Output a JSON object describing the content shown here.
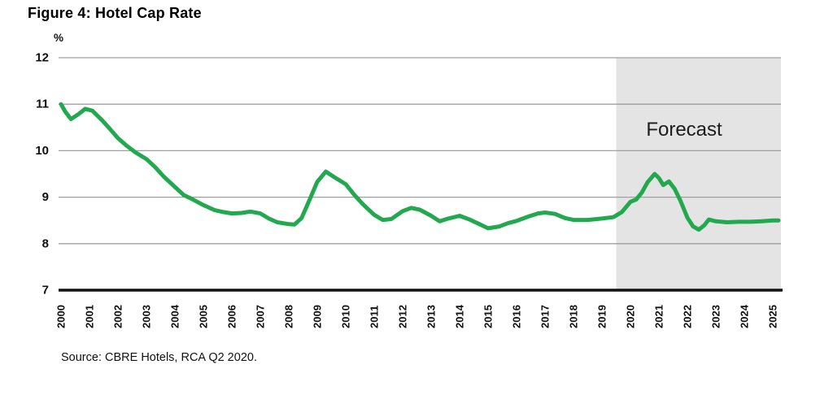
{
  "header": {
    "title": "Figure 4: Hotel Cap Rate"
  },
  "footer": {
    "source": "Source: CBRE Hotels, RCA Q2 2020."
  },
  "colors": {
    "line_green": "#22a84f",
    "forecast_band": "#e4e4e4",
    "gridline": "#a0a0a0",
    "axis": "#111111",
    "text": "#111111"
  },
  "chart_data": {
    "type": "line",
    "title": "Figure 4: Hotel Cap Rate",
    "xlabel": "",
    "ylabel": "%",
    "unit_label": "%",
    "ylim": [
      7,
      12
    ],
    "xlim": [
      1999.915,
      2025.285
    ],
    "grid": "horizontal",
    "legend": "none",
    "yticks": [
      12,
      11,
      10,
      9,
      8,
      7
    ],
    "xticks": [
      2000,
      2001,
      2002,
      2003,
      2004,
      2005,
      2006,
      2007,
      2008,
      2009,
      2010,
      2011,
      2012,
      2013,
      2014,
      2015,
      2016,
      2017,
      2018,
      2019,
      2020,
      2021,
      2022,
      2023,
      2024,
      2025
    ],
    "forecast": {
      "label": "Forecast",
      "start": 2019.5
    },
    "series": [
      {
        "name": "Hotel Cap Rate",
        "color": "#22a84f",
        "points": [
          [
            2000.0,
            11.0
          ],
          [
            2000.15,
            10.84
          ],
          [
            2000.35,
            10.68
          ],
          [
            2000.6,
            10.78
          ],
          [
            2000.85,
            10.9
          ],
          [
            2001.1,
            10.86
          ],
          [
            2001.45,
            10.65
          ],
          [
            2001.7,
            10.48
          ],
          [
            2002.0,
            10.27
          ],
          [
            2002.3,
            10.11
          ],
          [
            2002.6,
            9.97
          ],
          [
            2003.0,
            9.82
          ],
          [
            2003.3,
            9.65
          ],
          [
            2003.6,
            9.45
          ],
          [
            2004.0,
            9.22
          ],
          [
            2004.3,
            9.05
          ],
          [
            2004.6,
            8.96
          ],
          [
            2005.0,
            8.83
          ],
          [
            2005.4,
            8.72
          ],
          [
            2005.7,
            8.68
          ],
          [
            2006.0,
            8.65
          ],
          [
            2006.35,
            8.66
          ],
          [
            2006.65,
            8.69
          ],
          [
            2007.0,
            8.65
          ],
          [
            2007.3,
            8.54
          ],
          [
            2007.6,
            8.46
          ],
          [
            2008.0,
            8.42
          ],
          [
            2008.2,
            8.41
          ],
          [
            2008.45,
            8.55
          ],
          [
            2008.7,
            8.9
          ],
          [
            2009.0,
            9.33
          ],
          [
            2009.3,
            9.55
          ],
          [
            2009.6,
            9.43
          ],
          [
            2010.0,
            9.28
          ],
          [
            2010.3,
            9.05
          ],
          [
            2010.6,
            8.85
          ],
          [
            2011.0,
            8.62
          ],
          [
            2011.3,
            8.51
          ],
          [
            2011.6,
            8.53
          ],
          [
            2012.0,
            8.7
          ],
          [
            2012.3,
            8.77
          ],
          [
            2012.6,
            8.73
          ],
          [
            2013.0,
            8.6
          ],
          [
            2013.3,
            8.48
          ],
          [
            2013.6,
            8.54
          ],
          [
            2014.0,
            8.6
          ],
          [
            2014.35,
            8.52
          ],
          [
            2014.7,
            8.42
          ],
          [
            2015.0,
            8.33
          ],
          [
            2015.4,
            8.37
          ],
          [
            2015.7,
            8.44
          ],
          [
            2016.0,
            8.49
          ],
          [
            2016.4,
            8.58
          ],
          [
            2016.75,
            8.65
          ],
          [
            2017.0,
            8.67
          ],
          [
            2017.35,
            8.64
          ],
          [
            2017.7,
            8.55
          ],
          [
            2018.0,
            8.51
          ],
          [
            2018.5,
            8.51
          ],
          [
            2019.0,
            8.54
          ],
          [
            2019.4,
            8.57
          ],
          [
            2019.7,
            8.68
          ],
          [
            2020.0,
            8.9
          ],
          [
            2020.2,
            8.95
          ],
          [
            2020.4,
            9.1
          ],
          [
            2020.6,
            9.32
          ],
          [
            2020.85,
            9.5
          ],
          [
            2021.0,
            9.41
          ],
          [
            2021.15,
            9.26
          ],
          [
            2021.35,
            9.34
          ],
          [
            2021.55,
            9.18
          ],
          [
            2021.75,
            8.93
          ],
          [
            2022.0,
            8.56
          ],
          [
            2022.2,
            8.37
          ],
          [
            2022.4,
            8.3
          ],
          [
            2022.6,
            8.4
          ],
          [
            2022.75,
            8.52
          ],
          [
            2023.0,
            8.48
          ],
          [
            2023.4,
            8.46
          ],
          [
            2023.8,
            8.47
          ],
          [
            2024.2,
            8.47
          ],
          [
            2024.6,
            8.48
          ],
          [
            2025.0,
            8.5
          ],
          [
            2025.2,
            8.5
          ]
        ]
      }
    ]
  }
}
